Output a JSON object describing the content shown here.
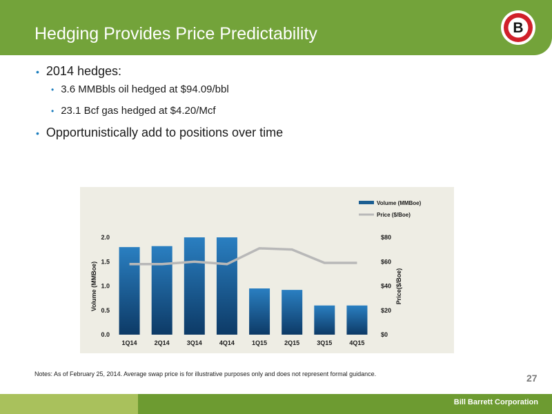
{
  "header": {
    "title": "Hedging Provides Price Predictability",
    "logo_letter": "B",
    "accent_color": "#73a33a"
  },
  "bullets": [
    {
      "text": "2014 hedges:",
      "level": 1
    },
    {
      "text": "3.6 MMBbls oil hedged at $94.09/bbl",
      "level": 2
    },
    {
      "text": "23.1 Bcf gas hedged at $4.20/Mcf",
      "level": 2
    },
    {
      "text": "Opportunistically add to positions over time",
      "level": 1
    }
  ],
  "chart_data": {
    "type": "bar",
    "categories": [
      "1Q14",
      "2Q14",
      "3Q14",
      "4Q14",
      "1Q15",
      "2Q15",
      "3Q15",
      "4Q15"
    ],
    "series": [
      {
        "name": "Volume (MMBoe)",
        "type": "bar",
        "axis": "left",
        "color": "#1b5e92",
        "values": [
          1.8,
          1.82,
          2.0,
          2.0,
          0.95,
          0.92,
          0.6,
          0.6
        ]
      },
      {
        "name": "Price ($/Boe)",
        "type": "line",
        "axis": "right",
        "color": "#b8b8b8",
        "values": [
          58,
          58,
          60,
          58,
          71,
          70,
          59,
          59
        ]
      }
    ],
    "ylabel": "Volume (MMBoe)",
    "y2label": "Price($/Boe)",
    "ylim": [
      0,
      2.0
    ],
    "y2lim": [
      0,
      80
    ],
    "yticks": [
      "0.0",
      "0.5",
      "1.0",
      "1.5",
      "2.0"
    ],
    "y2ticks": [
      "$0",
      "$20",
      "$40",
      "$60",
      "$80"
    ],
    "legend_position": "top-right",
    "grid": false
  },
  "notes": "Notes: As of February 25, 2014. Average swap price is for illustrative purposes only and does not represent formal guidance.",
  "page_number": "27",
  "footer": {
    "company": "Bill Barrett Corporation"
  }
}
